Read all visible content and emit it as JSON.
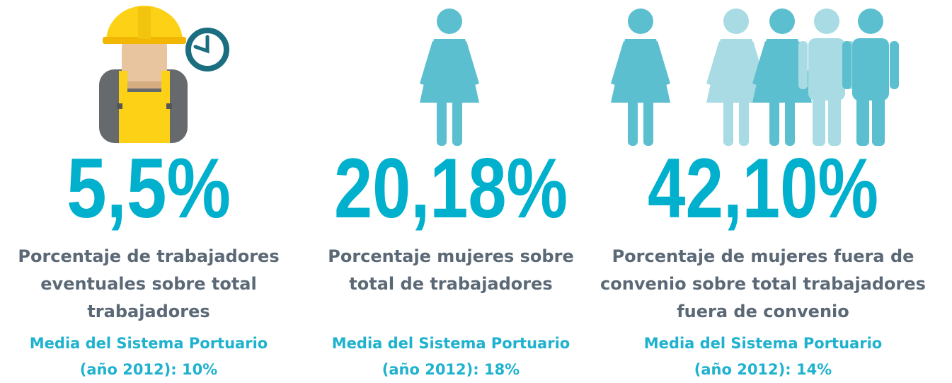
{
  "stats": [
    {
      "value": "5,5%",
      "description": [
        "Porcentaje de trabajadores",
        "eventuales sobre total",
        "trabajadores"
      ],
      "benchmark": [
        "Media del Sistema Portuario",
        "(año 2012): 10%"
      ]
    },
    {
      "value": "20,18%",
      "description": [
        "Porcentaje mujeres sobre",
        "total de trabajadores"
      ],
      "benchmark": [
        "Media del Sistema Portuario",
        "(año 2012): 18%"
      ]
    },
    {
      "value": "42,10%",
      "description": [
        "Porcentaje de mujeres fuera de",
        "convenio sobre total trabajadores",
        "fuera de convenio"
      ],
      "benchmark": [
        "Media del Sistema Portuario",
        "(año 2012): 14%"
      ]
    }
  ]
}
